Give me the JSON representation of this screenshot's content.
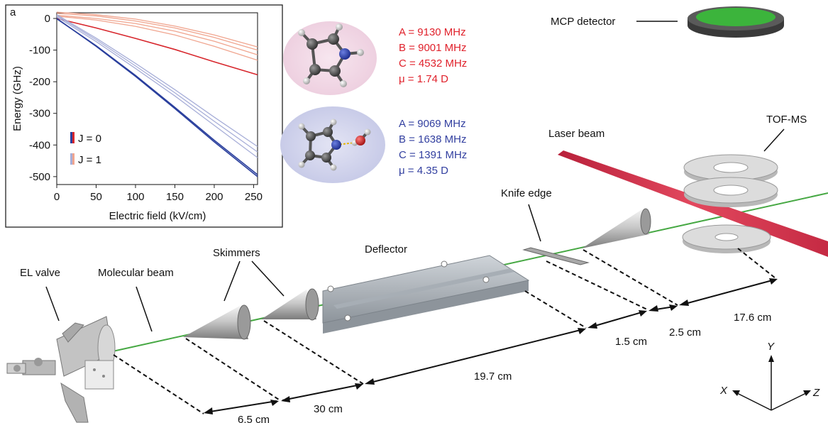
{
  "panel_label": "a",
  "colors": {
    "red_strong": "#d7262c",
    "red_light": "#f0a58f",
    "blue_strong": "#2a3f9d",
    "blue_light": "#a7aed8",
    "beam_green": "#46a843",
    "laser_red": "#d8374f",
    "mcp_green": "#3cb43c",
    "pyrrole_bg": "#f2dbe8",
    "water_bg": "#d5d7ee",
    "label_red": "#e0212b",
    "label_blue": "#3340a0"
  },
  "chart_data": {
    "type": "line",
    "title": "",
    "xlabel": "Electric field (kV/cm)",
    "ylabel": "Energy (GHz)",
    "xlim": [
      0,
      255
    ],
    "ylim": [
      -525,
      18
    ],
    "xticks": [
      "0",
      "50",
      "100",
      "150",
      "200",
      "250"
    ],
    "yticks": [
      "0",
      "-100",
      "-200",
      "-300",
      "-400",
      "-500"
    ],
    "legend": [
      {
        "label": "J = 0",
        "kind": "j0"
      },
      {
        "label": "J = 1",
        "kind": "j1"
      }
    ],
    "series": [
      {
        "group": "red_light",
        "x": [
          0,
          50,
          100,
          150,
          200,
          255
        ],
        "y": [
          20,
          12,
          -2,
          -24,
          -52,
          -90
        ]
      },
      {
        "group": "red_light",
        "x": [
          0,
          50,
          100,
          150,
          200,
          255
        ],
        "y": [
          16,
          8,
          -8,
          -30,
          -60,
          -100
        ]
      },
      {
        "group": "red_light",
        "x": [
          0,
          50,
          100,
          150,
          200,
          255
        ],
        "y": [
          10,
          0,
          -16,
          -40,
          -72,
          -115
        ]
      },
      {
        "group": "red_light",
        "x": [
          0,
          50,
          100,
          150,
          200,
          255
        ],
        "y": [
          7,
          -5,
          -25,
          -52,
          -88,
          -132
        ]
      },
      {
        "group": "red_strong",
        "x": [
          0,
          50,
          100,
          150,
          200,
          255
        ],
        "y": [
          0,
          -30,
          -63,
          -98,
          -137,
          -178
        ]
      },
      {
        "group": "blue_light",
        "x": [
          0,
          50,
          100,
          150,
          200,
          255
        ],
        "y": [
          12,
          -62,
          -142,
          -225,
          -312,
          -405
        ]
      },
      {
        "group": "blue_light",
        "x": [
          0,
          50,
          100,
          150,
          200,
          255
        ],
        "y": [
          9,
          -67,
          -150,
          -235,
          -325,
          -422
        ]
      },
      {
        "group": "blue_light",
        "x": [
          0,
          50,
          100,
          150,
          200,
          255
        ],
        "y": [
          5,
          -73,
          -158,
          -245,
          -338,
          -440
        ]
      },
      {
        "group": "blue_strong",
        "x": [
          0,
          50,
          100,
          150,
          200,
          255
        ],
        "y": [
          0,
          -88,
          -183,
          -285,
          -390,
          -500
        ]
      },
      {
        "group": "blue_strong",
        "x": [
          0,
          50,
          100,
          150,
          200,
          255
        ],
        "y": [
          -1,
          -86,
          -180,
          -281,
          -385,
          -494
        ]
      }
    ]
  },
  "molecule_red": {
    "lines": [
      "A = 9130 MHz",
      "B = 9001 MHz",
      "C = 4532 MHz",
      "μ  = 1.74 D"
    ]
  },
  "molecule_blue": {
    "lines": [
      "A = 9069 MHz",
      "B = 1638 MHz",
      "C = 1391 MHz",
      "μ  = 4.35 D"
    ]
  },
  "labels": {
    "mcp": "MCP detector",
    "tofms": "TOF-MS",
    "laser": "Laser beam",
    "knife": "Knife edge",
    "deflector": "Deflector",
    "skimmers": "Skimmers",
    "el_valve": "EL valve",
    "mol_beam": "Molecular beam"
  },
  "distances": {
    "d1": "6.5 cm",
    "d2": "30 cm",
    "d3": "19.7 cm",
    "d4": "1.5 cm",
    "d5": "2.5 cm",
    "d6": "17.6 cm"
  },
  "axes3d": {
    "x": "X",
    "y": "Y",
    "z": "Z"
  }
}
